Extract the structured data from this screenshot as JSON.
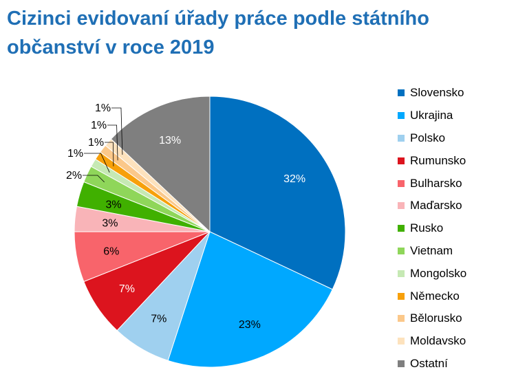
{
  "title_lines": [
    "Cizinci evidovaní úřady práce podle státního",
    "občanství v roce 2019"
  ],
  "chart_data": {
    "type": "pie",
    "title": "Cizinci evidovaní úřady práce podle státního občanství v roce 2019",
    "unit": "%",
    "legend_position": "right",
    "slices": [
      {
        "label": "Slovensko",
        "value": 32,
        "display": "32%",
        "color": "#0070c0",
        "label_color": "#ffffff"
      },
      {
        "label": "Ukrajina",
        "value": 23,
        "display": "23%",
        "color": "#00a8ff",
        "label_color": "#000000"
      },
      {
        "label": "Polsko",
        "value": 7,
        "display": "7%",
        "color": "#9fd0ef",
        "label_color": "#000000"
      },
      {
        "label": "Rumunsko",
        "value": 7,
        "display": "7%",
        "color": "#dc141e",
        "label_color": "#ffffff"
      },
      {
        "label": "Bulharsko",
        "value": 6,
        "display": "6%",
        "color": "#f8646b",
        "label_color": "#000000"
      },
      {
        "label": "Maďarsko",
        "value": 3,
        "display": "3%",
        "color": "#f9b4b8",
        "label_color": "#000000"
      },
      {
        "label": "Rusko",
        "value": 3,
        "display": "3%",
        "color": "#40b000",
        "label_color": "#000000"
      },
      {
        "label": "Vietnam",
        "value": 2,
        "display": "2%",
        "color": "#8fd65a",
        "label_color": "#000000"
      },
      {
        "label": "Mongolsko",
        "value": 1,
        "display": "1%",
        "color": "#c6e9b4",
        "label_color": "#000000"
      },
      {
        "label": "Německo",
        "value": 1,
        "display": "1%",
        "color": "#f7a00a",
        "label_color": "#000000"
      },
      {
        "label": "Bělorusko",
        "value": 1,
        "display": "1%",
        "color": "#fbc88a",
        "label_color": "#000000"
      },
      {
        "label": "Moldavsko",
        "value": 1,
        "display": "1%",
        "color": "#fde2bd",
        "label_color": "#000000"
      },
      {
        "label": "Ostatní",
        "value": 13,
        "display": "13%",
        "color": "#7f7f7f",
        "label_color": "#ffffff"
      }
    ]
  }
}
